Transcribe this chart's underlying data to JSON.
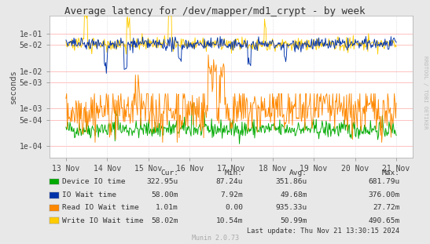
{
  "title": "Average latency for /dev/mapper/md1_crypt - by week",
  "ylabel": "seconds",
  "xlabel_dates": [
    "13 Nov",
    "14 Nov",
    "15 Nov",
    "16 Nov",
    "17 Nov",
    "18 Nov",
    "19 Nov",
    "20 Nov",
    "21 Nov"
  ],
  "bg_color": "#e8e8e8",
  "plot_bg_color": "#ffffff",
  "grid_color_h": "#ffaaaa",
  "grid_color_v": "#ccccdd",
  "legend_items": [
    {
      "label": "Device IO time",
      "color": "#00aa00"
    },
    {
      "label": "IO Wait time",
      "color": "#0033aa"
    },
    {
      "label": "Read IO Wait time",
      "color": "#ff8800"
    },
    {
      "label": "Write IO Wait time",
      "color": "#ffcc00"
    }
  ],
  "legend_cols": {
    "cur": [
      "322.95u",
      "58.00m",
      "1.01m",
      "58.02m"
    ],
    "min": [
      "87.24u",
      "7.92m",
      "0.00",
      "10.54m"
    ],
    "avg": [
      "351.86u",
      "49.68m",
      "935.33u",
      "50.99m"
    ],
    "max": [
      "681.79u",
      "376.00m",
      "27.72m",
      "490.65m"
    ]
  },
  "last_update": "Last update: Thu Nov 21 13:30:15 2024",
  "munin_version": "Munin 2.0.73",
  "watermark": "RRDTOOL / TOBI OETIKER",
  "n_points": 500,
  "seed": 42,
  "ytick_vals": [
    0.0001,
    0.0005,
    0.001,
    0.005,
    0.01,
    0.05,
    0.1
  ],
  "ytick_labels": [
    "1e-04",
    "5e-04",
    "1e-03",
    "5e-03",
    "1e-02",
    "5e-02",
    "1e-01"
  ],
  "ymin": 5e-05,
  "ymax": 0.3
}
